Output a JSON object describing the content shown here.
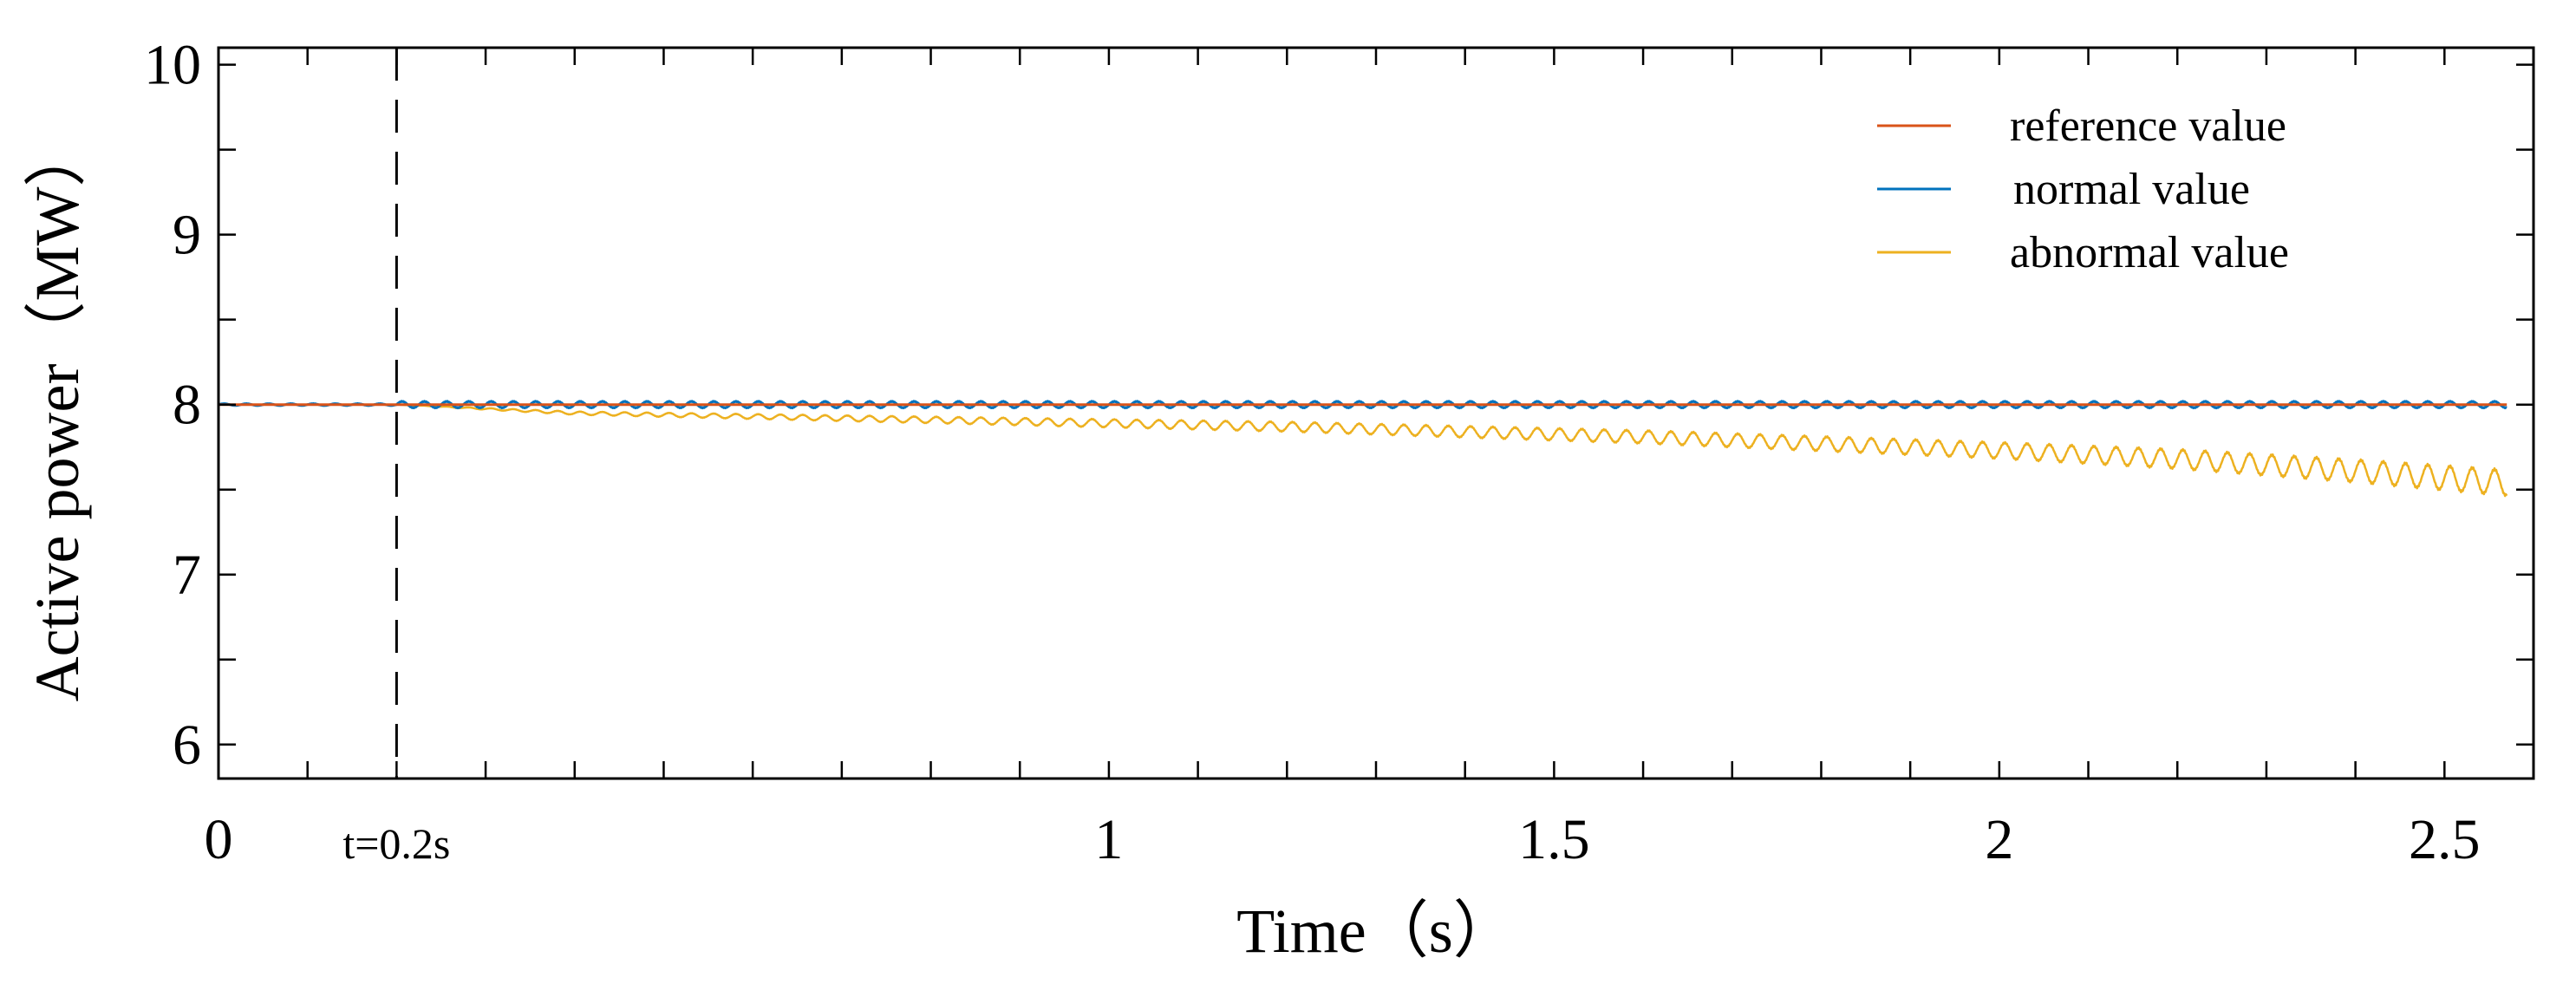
{
  "chart_data": {
    "type": "line",
    "title": "",
    "xlabel": "Time（s）",
    "ylabel": "Active power（MW）",
    "xlim": [
      0,
      2.6
    ],
    "ylim": [
      5.8,
      10.1
    ],
    "x_ticks": [
      {
        "value": 0,
        "label": "0"
      },
      {
        "value": 1,
        "label": "1"
      },
      {
        "value": 1.5,
        "label": "1.5"
      },
      {
        "value": 2,
        "label": "2"
      },
      {
        "value": 2.5,
        "label": "2.5"
      }
    ],
    "x_minor_ticks": [
      0.1,
      0.2,
      0.3,
      0.4,
      0.5,
      0.6,
      0.7,
      0.8,
      0.9,
      1.1,
      1.2,
      1.3,
      1.4,
      1.6,
      1.7,
      1.8,
      1.9,
      2.1,
      2.2,
      2.3,
      2.4
    ],
    "y_ticks": [
      {
        "value": 6,
        "label": "6"
      },
      {
        "value": 7,
        "label": "7"
      },
      {
        "value": 8,
        "label": "8"
      },
      {
        "value": 9,
        "label": "9"
      },
      {
        "value": 10,
        "label": "10"
      }
    ],
    "y_minor_ticks": [
      6.5,
      7.5,
      8.5,
      9.5
    ],
    "grid": false,
    "legend_position": "top-right",
    "series": [
      {
        "name": "reference value",
        "color": "#d95319",
        "style": "line",
        "x": [
          0,
          2.57
        ],
        "y": [
          8.0,
          8.0
        ]
      },
      {
        "name": "normal value",
        "color": "#0072bd",
        "style": "line",
        "x": [
          0,
          2.57
        ],
        "y": [
          8.0,
          8.0
        ],
        "ripple_amplitude": 0.02
      },
      {
        "name": "abnormal value",
        "color": "#edb120",
        "style": "line",
        "x": [
          0,
          0.2,
          0.4,
          0.6,
          0.8,
          1.0,
          1.2,
          1.4,
          1.6,
          1.8,
          2.0,
          2.2,
          2.4,
          2.57
        ],
        "y": [
          8.0,
          8.0,
          7.95,
          7.93,
          7.91,
          7.89,
          7.87,
          7.84,
          7.81,
          7.77,
          7.73,
          7.68,
          7.61,
          7.54
        ],
        "ripple_amplitude": [
          0,
          0,
          0.01,
          0.015,
          0.02,
          0.025,
          0.03,
          0.035,
          0.04,
          0.045,
          0.05,
          0.06,
          0.07,
          0.08
        ]
      }
    ],
    "annotations": [
      {
        "type": "vline",
        "x": 0.2,
        "style": "dashed",
        "label": "t=0.2s"
      }
    ]
  }
}
